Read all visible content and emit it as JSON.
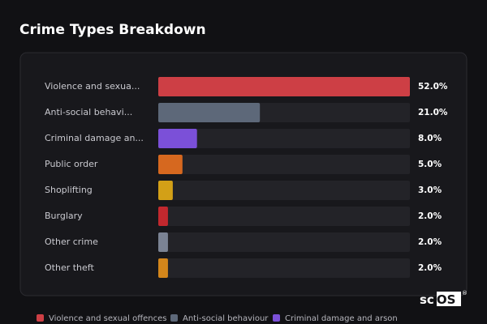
{
  "header": {
    "title": "Crime Types Breakdown"
  },
  "chart_data": {
    "type": "bar",
    "orientation": "horizontal",
    "categories": [
      "Violence and sexua...",
      "Anti-social behavi...",
      "Criminal damage an...",
      "Public order",
      "Shoplifting",
      "Burglary",
      "Other crime",
      "Other theft"
    ],
    "values": [
      52,
      21,
      8,
      5,
      3,
      2,
      2,
      2
    ],
    "value_labels": [
      "52.0%",
      "21.0%",
      "8.0%",
      "5.0%",
      "3.0%",
      "2.0%",
      "2.0%",
      "2.0%"
    ],
    "colors": [
      "#cd3f45",
      "#5d6879",
      "#7b50d8",
      "#d6681f",
      "#d3a017",
      "#c2282e",
      "#7b8394",
      "#d3861b"
    ],
    "legend": [
      {
        "name": "Violence and sexual offences",
        "color": "#cd3f45"
      },
      {
        "name": "Anti-social behaviour",
        "color": "#5d6879"
      },
      {
        "name": "Criminal damage and arson",
        "color": "#7b50d8"
      }
    ]
  },
  "logo": {
    "text": "scOS",
    "mark": "®"
  }
}
